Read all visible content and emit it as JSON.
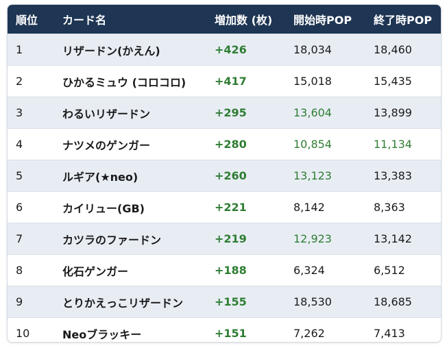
{
  "table": {
    "header": [
      "順位",
      "カード名",
      "増加数 (枚)",
      "開始時POP",
      "終了時POP"
    ],
    "rows": [
      [
        "1",
        "リザードン(かえん)",
        "+426",
        "18,034",
        "18,460"
      ],
      [
        "2",
        "ひかるミュウ (コロコロ)",
        "+417",
        "15,018",
        "15,435"
      ],
      [
        "3",
        "わるいリザードン",
        "+295",
        "13,604",
        "13,899"
      ],
      [
        "4",
        "ナツメのゲンガー",
        "+280",
        "10,854",
        "11,134"
      ],
      [
        "5",
        "ルギア(★neo)",
        "+260",
        "13,123",
        "13,383"
      ],
      [
        "6",
        "カイリュー(GB)",
        "+221",
        "8,142",
        "8,363"
      ],
      [
        "7",
        "カツラのファードン",
        "+219",
        "12,923",
        "13,142"
      ],
      [
        "8",
        "化石ゲンガー",
        "+188",
        "6,324",
        "6,512"
      ],
      [
        "9",
        "とりかえっこリザードン",
        "+155",
        "18,530",
        "18,685"
      ],
      [
        "10",
        "Neoブラッキー",
        "+151",
        "7,262",
        "7,413"
      ]
    ]
  }
}
